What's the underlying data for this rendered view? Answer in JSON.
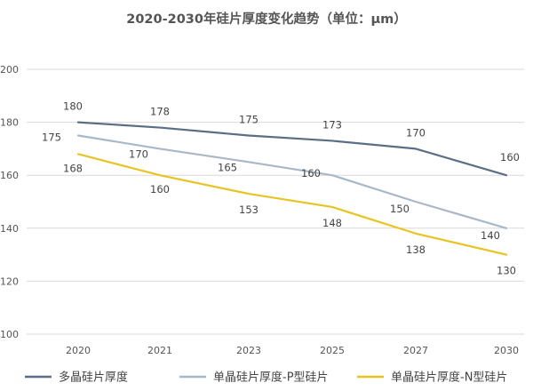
{
  "chart_data": {
    "type": "line",
    "title": "2020-2030年硅片厚度变化趋势（单位：μm）",
    "categories": [
      "2020",
      "2021",
      "2023",
      "2025",
      "2027",
      "2030"
    ],
    "yticks": [
      "100",
      "120",
      "140",
      "160",
      "180",
      "200"
    ],
    "ylim": [
      100,
      200
    ],
    "grid": true,
    "legend_position": "bottom",
    "series": [
      {
        "name": "多晶硅片厚度",
        "color": "#5a6f85",
        "values": [
          180,
          178,
          175,
          173,
          170,
          160
        ]
      },
      {
        "name": "单晶硅片厚度-P型硅片",
        "color": "#a8b8c6",
        "values": [
          175,
          170,
          165,
          160,
          150,
          140
        ]
      },
      {
        "name": "单晶硅片厚度-N型硅片",
        "color": "#e8c321",
        "values": [
          168,
          160,
          153,
          148,
          138,
          130
        ]
      }
    ]
  }
}
